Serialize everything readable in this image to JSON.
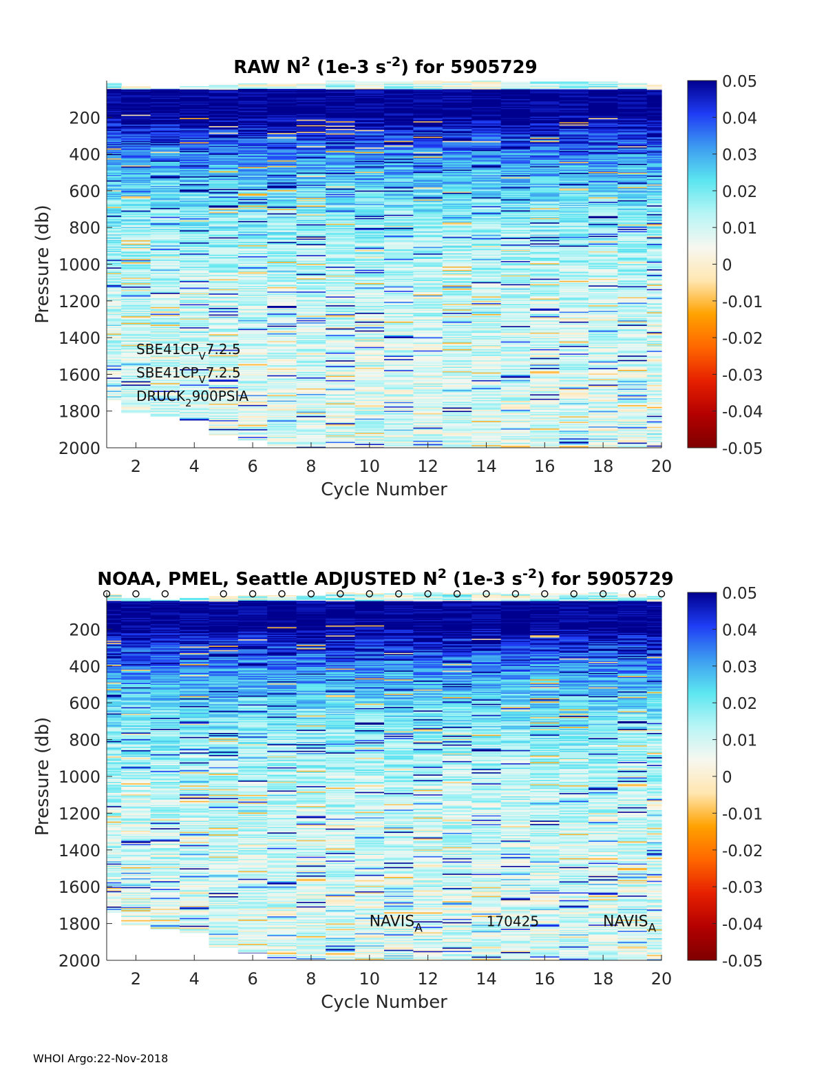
{
  "colors": {
    "colormap": [
      "#7f0000",
      "#b30000",
      "#e62000",
      "#ff6600",
      "#ffa200",
      "#ffe6b0",
      "#f7f7f0",
      "#b8f5f5",
      "#5ce6f0",
      "#3d9cf0",
      "#1f3df5",
      "#00008f"
    ]
  },
  "chart_data": [
    {
      "type": "heatmap",
      "title": "RAW N^2 (1e-3 s^-2) for 5905729",
      "title_parts": {
        "pre": "RAW N",
        "sup1": "2",
        "mid": " (1e-3 s",
        "sup2": "-2",
        "post": ") for 5905729"
      },
      "xlabel": "Cycle Number",
      "ylabel": "Pressure (db)",
      "x": [
        1,
        2,
        3,
        4,
        5,
        6,
        7,
        8,
        9,
        10,
        11,
        12,
        13,
        14,
        15,
        16,
        17,
        18,
        19,
        20
      ],
      "xlim": [
        1,
        20
      ],
      "ylim": [
        0,
        2000
      ],
      "xticks": [
        "2",
        "4",
        "6",
        "8",
        "10",
        "12",
        "14",
        "16",
        "18",
        "20"
      ],
      "yticks": [
        "200",
        "400",
        "600",
        "800",
        "1000",
        "1200",
        "1400",
        "1600",
        "1800",
        "2000"
      ],
      "max_pressure": [
        1740,
        1810,
        1830,
        1850,
        1930,
        1960,
        1990,
        2000,
        2000,
        2000,
        2000,
        2000,
        2000,
        2000,
        2000,
        2000,
        2000,
        2000,
        2000,
        2000
      ],
      "surface_top": [
        10,
        30,
        40,
        30,
        20,
        15,
        15,
        15,
        0,
        5,
        5,
        0,
        5,
        0,
        5,
        5,
        5,
        0,
        10,
        20
      ],
      "colorbar": {
        "clim": [
          -0.05,
          0.05
        ],
        "ticks": [
          "0.05",
          "0.04",
          "0.03",
          "0.02",
          "0.01",
          "0",
          "-0.01",
          "-0.02",
          "-0.03",
          "-0.04",
          "-0.05"
        ]
      },
      "annotations": [
        {
          "base": "SBE41CP",
          "sub": "V",
          "rest": "7.2.5"
        },
        {
          "base": "SBE41CP",
          "sub": "V",
          "rest": "7.2.5"
        },
        {
          "base": "DRUCK",
          "sub": "2",
          "rest": "900PSIA"
        }
      ],
      "markers": []
    },
    {
      "type": "heatmap",
      "title": "NOAA, PMEL, Seattle  ADJUSTED N^2 (1e-3 s^-2) for 5905729",
      "title_parts": {
        "pre": "NOAA, PMEL, Seattle  ADJUSTED N",
        "sup1": "2",
        "mid": " (1e-3 s",
        "sup2": "-2",
        "post": ") for 5905729"
      },
      "xlabel": "Cycle Number",
      "ylabel": "Pressure (db)",
      "x": [
        1,
        2,
        3,
        4,
        5,
        6,
        7,
        8,
        9,
        10,
        11,
        12,
        13,
        14,
        15,
        16,
        17,
        18,
        19,
        20
      ],
      "xlim": [
        1,
        20
      ],
      "ylim": [
        0,
        2000
      ],
      "xticks": [
        "2",
        "4",
        "6",
        "8",
        "10",
        "12",
        "14",
        "16",
        "18",
        "20"
      ],
      "yticks": [
        "200",
        "400",
        "600",
        "800",
        "1000",
        "1200",
        "1400",
        "1600",
        "1800",
        "2000"
      ],
      "max_pressure": [
        1740,
        1810,
        1830,
        1850,
        1930,
        1960,
        1990,
        2000,
        2000,
        2000,
        2000,
        2000,
        2000,
        2000,
        2000,
        2000,
        2000,
        2000,
        2000,
        2000
      ],
      "surface_top": [
        10,
        30,
        40,
        30,
        20,
        15,
        15,
        15,
        0,
        5,
        5,
        0,
        5,
        0,
        5,
        5,
        5,
        0,
        10,
        20
      ],
      "colorbar": {
        "clim": [
          -0.05,
          0.05
        ],
        "ticks": [
          "0.05",
          "0.04",
          "0.03",
          "0.02",
          "0.01",
          "0",
          "-0.01",
          "-0.02",
          "-0.03",
          "-0.04",
          "-0.05"
        ]
      },
      "annotations": [
        {
          "base": "NAVIS",
          "sub": "A",
          "rest": "",
          "x": 11,
          "y": 1800
        },
        {
          "base": "170425",
          "sub": "",
          "rest": "",
          "x": 15,
          "y": 1800
        },
        {
          "base": "NAVIS",
          "sub": "A",
          "rest": "",
          "x": 19,
          "y": 1800
        }
      ],
      "markers": {
        "symbol": "o",
        "x": [
          1,
          2,
          3,
          5,
          6,
          7,
          8,
          9,
          10,
          11,
          12,
          13,
          14,
          15,
          16,
          17,
          18,
          19,
          20
        ],
        "y": 0
      }
    }
  ],
  "footer": {
    "text": "WHOI Argo:22-Nov-2018"
  }
}
